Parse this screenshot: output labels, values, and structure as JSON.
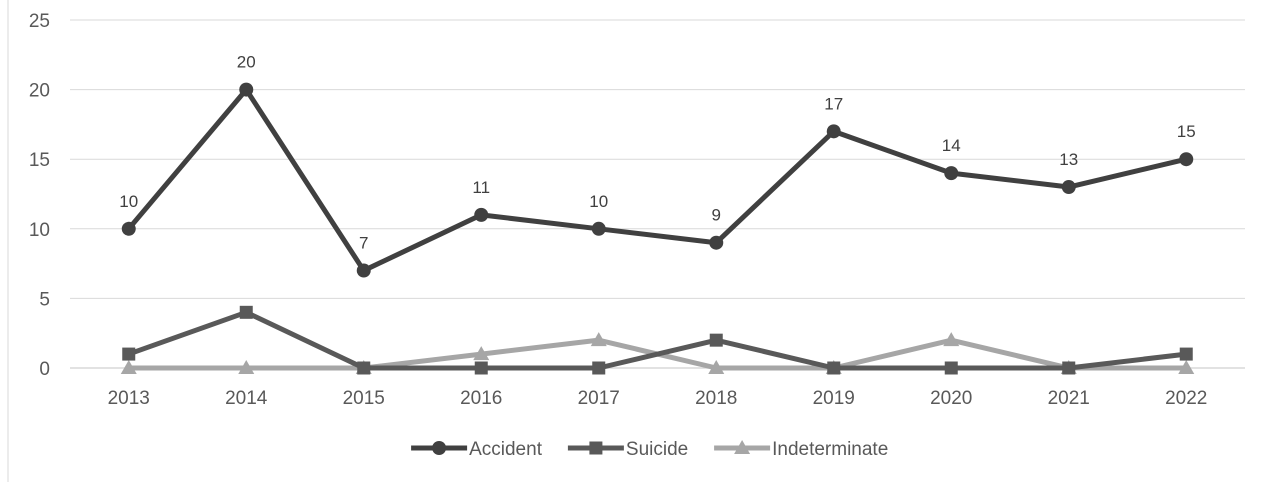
{
  "chart_data": {
    "type": "line",
    "title": "",
    "xlabel": "",
    "ylabel": "",
    "categories": [
      "2013",
      "2014",
      "2015",
      "2016",
      "2017",
      "2018",
      "2019",
      "2020",
      "2021",
      "2022"
    ],
    "ylim": [
      0,
      25
    ],
    "yticks": [
      "0",
      "5",
      "10",
      "15",
      "20",
      "25"
    ],
    "grid": "horizontal",
    "legend_position": "bottom",
    "series": [
      {
        "name": "Accident",
        "values": [
          10,
          20,
          7,
          11,
          10,
          9,
          17,
          14,
          13,
          15
        ],
        "color": "#404040",
        "marker": "circle",
        "data_labels": true
      },
      {
        "name": "Suicide",
        "values": [
          1,
          4,
          0,
          0,
          0,
          2,
          0,
          0,
          0,
          1
        ],
        "color": "#595959",
        "marker": "square",
        "data_labels": false
      },
      {
        "name": "Indeterminate",
        "values": [
          0,
          0,
          0,
          1,
          2,
          0,
          0,
          2,
          0,
          0
        ],
        "color": "#a6a6a6",
        "marker": "triangle",
        "data_labels": false
      }
    ]
  }
}
